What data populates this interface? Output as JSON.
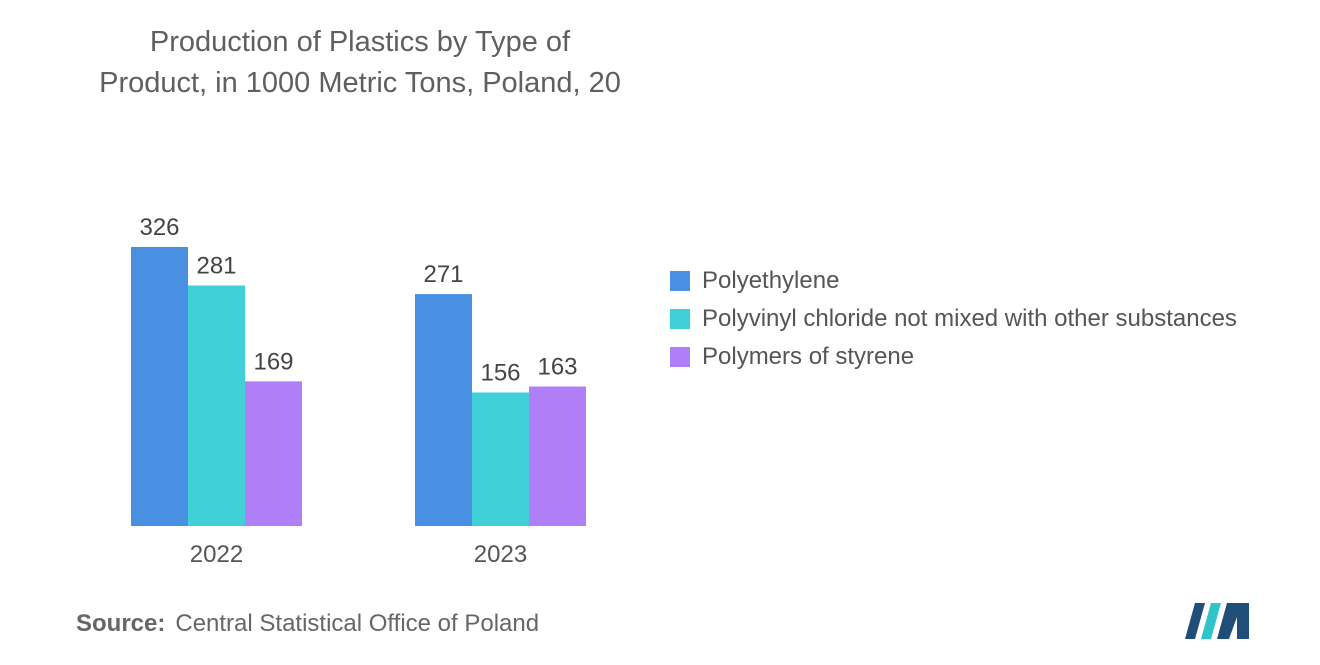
{
  "chart_data": {
    "type": "bar",
    "title": "Production of Plastics by Type of Product, in 1000 Metric Tons, Poland, 20",
    "categories": [
      "2022",
      "2023"
    ],
    "series": [
      {
        "name": "Polyethylene",
        "values": [
          326,
          271
        ],
        "color": "#4a90e2"
      },
      {
        "name": "Polyvinyl chloride not mixed with other substances",
        "values": [
          281,
          156
        ],
        "color": "#3fd0d8"
      },
      {
        "name": "Polymers of styrene",
        "values": [
          169,
          163
        ],
        "color": "#b07ef7"
      }
    ],
    "xlabel": "",
    "ylabel": "",
    "ylim": [
      0,
      326
    ],
    "grid": false,
    "legend_position": "right"
  },
  "title_lines": [
    "Production of Plastics by Type of",
    "Product, in 1000 Metric Tons, Poland, 20"
  ],
  "source": {
    "label": "Source:",
    "text": "Central Statistical Office of Poland"
  },
  "logo": {
    "icon": "mordor-intelligence-logo-icon",
    "colors": [
      "#1f4e79",
      "#2ec4c9"
    ]
  }
}
